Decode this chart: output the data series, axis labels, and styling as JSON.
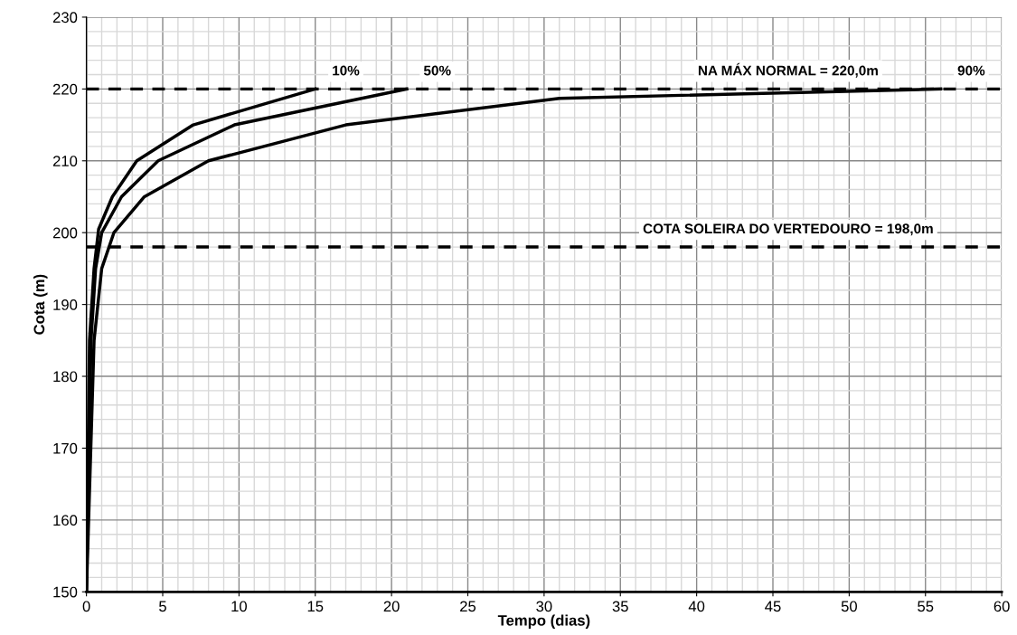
{
  "chart_data": {
    "type": "line",
    "xlabel": "Tempo (dias)",
    "ylabel": "Cota (m)",
    "xlim": [
      0,
      60
    ],
    "xticks": [
      0,
      5,
      10,
      15,
      20,
      25,
      30,
      35,
      40,
      45,
      50,
      55,
      60
    ],
    "ylim": [
      150,
      230
    ],
    "yticks": [
      150,
      160,
      170,
      180,
      190,
      200,
      210,
      220,
      230
    ],
    "grid": true,
    "legend": false,
    "marker": "none",
    "line_style": "solid",
    "series": [
      {
        "name": "10%",
        "color": "#000000",
        "x": [
          0,
          0.2,
          0.5,
          0.8,
          1.7,
          3.3,
          7,
          15
        ],
        "values": [
          150,
          185,
          195,
          200.5,
          205,
          210,
          215,
          220
        ]
      },
      {
        "name": "50%",
        "color": "#000000",
        "x": [
          0,
          0.3,
          0.6,
          1.0,
          2.3,
          4.7,
          9.7,
          21
        ],
        "values": [
          150,
          185,
          195,
          200,
          205,
          210,
          215,
          220
        ]
      },
      {
        "name": "90%",
        "color": "#000000",
        "x": [
          0,
          0.5,
          1.0,
          1.8,
          3.8,
          8,
          17,
          31,
          56
        ],
        "values": [
          150,
          185,
          195,
          200,
          205,
          210,
          215,
          218.7,
          220
        ]
      }
    ],
    "ref_lines": [
      {
        "axis": "y",
        "value": 220,
        "label": "NA MÁX NORMAL = 220,0m",
        "color": "#000000",
        "line_style": "dashed"
      },
      {
        "axis": "y",
        "value": 198,
        "label": "COTA SOLEIRA DO VERTEDOURO = 198,0m",
        "color": "#000000",
        "line_style": "dashed"
      }
    ]
  }
}
